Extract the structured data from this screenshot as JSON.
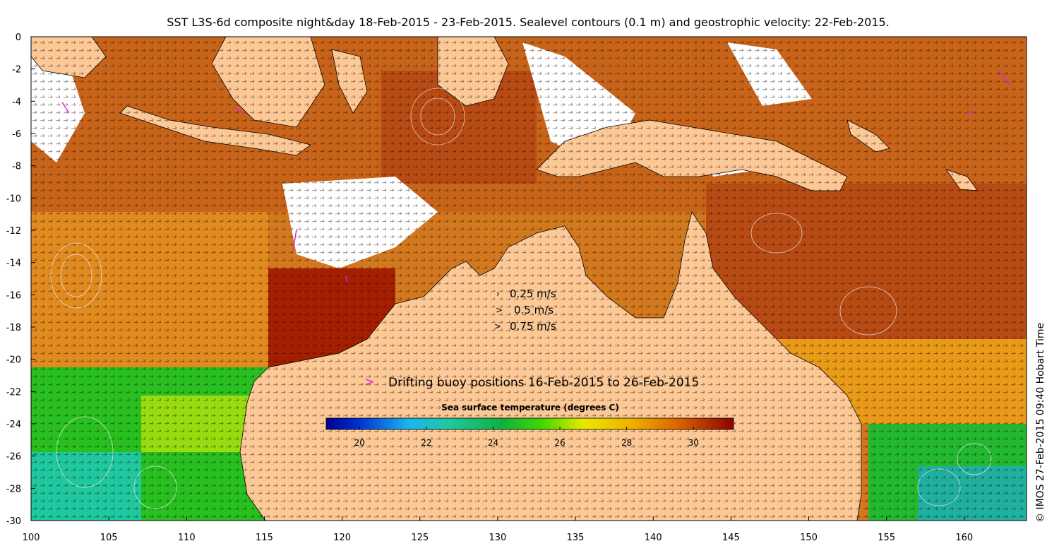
{
  "title": "SST L3S-6d composite night&day 18-Feb-2015 - 23-Feb-2015. Sealevel contours (0.1 m) and geostrophic velocity: 22-Feb-2015.",
  "credit": "© IMOS 27-Feb-2015 09:40 Hobart Time",
  "x_ticks": [
    "100",
    "105",
    "110",
    "115",
    "120",
    "125",
    "130",
    "135",
    "140",
    "145",
    "150",
    "155",
    "160"
  ],
  "y_ticks": [
    "0",
    "-2",
    "-4",
    "-6",
    "-8",
    "-10",
    "-12",
    "-14",
    "-16",
    "-18",
    "-20",
    "-22",
    "-24",
    "-26",
    "-28",
    "-30"
  ],
  "velocity_legend": [
    "0.25 m/s",
    "0.5 m/s",
    "0.75 m/s"
  ],
  "buoy_label": "Drifting buoy positions 16-Feb-2015 to 26-Feb-2015",
  "colorbar": {
    "title": "Sea surface temperature (degrees C)",
    "ticks": [
      "20",
      "22",
      "24",
      "26",
      "28",
      "30"
    ],
    "range": [
      19,
      31.2
    ]
  },
  "colors": {
    "land": "#fbc896",
    "buoy": "#e020e0"
  }
}
